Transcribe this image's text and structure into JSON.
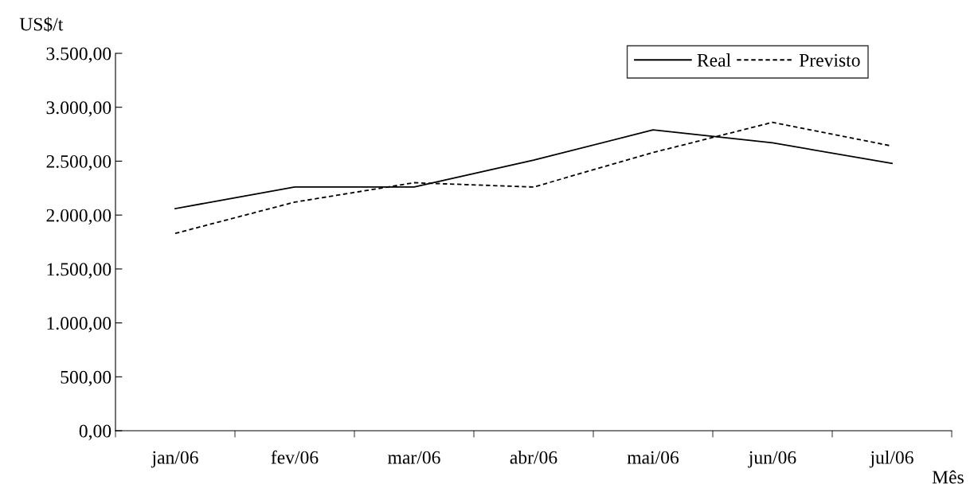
{
  "chart_data": {
    "type": "line",
    "ylabel": "US$/t",
    "xlabel": "Mês",
    "categories": [
      "jan/06",
      "fev/06",
      "mar/06",
      "abr/06",
      "mai/06",
      "jun/06",
      "jul/06"
    ],
    "series": [
      {
        "name": "Real",
        "color": "#000000",
        "line_style": "solid",
        "values": [
          2060,
          2260,
          2260,
          2510,
          2790,
          2670,
          2480
        ]
      },
      {
        "name": "Previsto",
        "color": "#000000",
        "line_style": "dashed",
        "values": [
          1830,
          2120,
          2300,
          2260,
          2580,
          2860,
          2640
        ]
      }
    ],
    "ylim": [
      0,
      3500
    ],
    "yticks": [
      {
        "value": 0,
        "label": "0,00"
      },
      {
        "value": 500,
        "label": "500,00"
      },
      {
        "value": 1000,
        "label": "1.000,00"
      },
      {
        "value": 1500,
        "label": "1.500,00"
      },
      {
        "value": 2000,
        "label": "2.000,00"
      },
      {
        "value": 2500,
        "label": "2.500,00"
      },
      {
        "value": 3000,
        "label": "3.000,00"
      },
      {
        "value": 3500,
        "label": "3.500,00"
      }
    ],
    "grid": false,
    "legend": "top right",
    "marker": "none"
  }
}
